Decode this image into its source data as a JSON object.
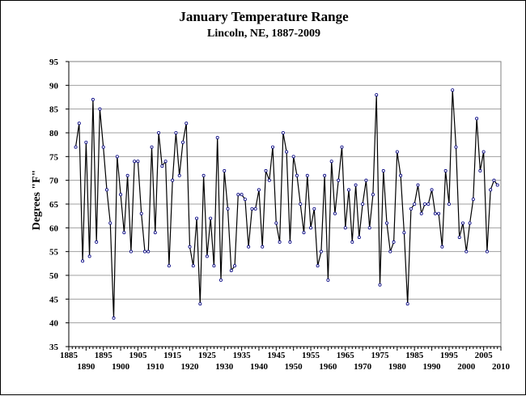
{
  "chart_data": {
    "type": "line",
    "title": "January Temperature Range",
    "subtitle": "Lincoln, NE, 1887-2009",
    "xlabel": "",
    "ylabel": "Degrees \"F\"",
    "xlim": [
      1885,
      2010
    ],
    "ylim": [
      35,
      95
    ],
    "y_ticks": [
      35,
      40,
      45,
      50,
      55,
      60,
      65,
      70,
      75,
      80,
      85,
      90,
      95
    ],
    "x_ticks_upper": [
      1885,
      1895,
      1905,
      1915,
      1925,
      1935,
      1945,
      1955,
      1965,
      1975,
      1985,
      1995,
      2005
    ],
    "x_ticks_lower": [
      1890,
      1900,
      1910,
      1920,
      1930,
      1940,
      1950,
      1960,
      1970,
      1980,
      1990,
      2000,
      2010
    ],
    "grid": "horizontal",
    "legend": "none",
    "series": [
      {
        "x": [
          1887,
          1888,
          1889,
          1890,
          1891,
          1892,
          1893,
          1894,
          1895,
          1896,
          1897,
          1898,
          1899,
          1900,
          1901,
          1902,
          1903,
          1904,
          1905,
          1906,
          1907,
          1908,
          1909,
          1910,
          1911,
          1912,
          1913,
          1914,
          1915,
          1916,
          1917,
          1918,
          1919,
          1920,
          1921,
          1922,
          1923,
          1924,
          1925,
          1926,
          1927,
          1928,
          1929,
          1930,
          1931,
          1932,
          1933,
          1934,
          1935,
          1936,
          1937,
          1938,
          1939,
          1940,
          1941,
          1942,
          1943,
          1944,
          1945,
          1946,
          1947,
          1948,
          1949,
          1950,
          1951,
          1952,
          1953,
          1954,
          1955,
          1956,
          1957,
          1958,
          1959,
          1960,
          1961,
          1962,
          1963,
          1964,
          1965,
          1966,
          1967,
          1968,
          1969,
          1970,
          1971,
          1972,
          1973,
          1974,
          1975,
          1976,
          1977,
          1978,
          1979,
          1980,
          1981,
          1982,
          1983,
          1984,
          1985,
          1986,
          1987,
          1988,
          1989,
          1990,
          1991,
          1992,
          1993,
          1994,
          1995,
          1996,
          1997,
          1998,
          1999,
          2000,
          2001,
          2002,
          2003,
          2004,
          2005,
          2006,
          2007,
          2008,
          2009
        ],
        "values": [
          77,
          82,
          53,
          78,
          54,
          87,
          57,
          85,
          77,
          68,
          61,
          41,
          75,
          67,
          59,
          71,
          55,
          74,
          74,
          63,
          55,
          55,
          77,
          59,
          80,
          73,
          74,
          52,
          70,
          80,
          71,
          78,
          82,
          56,
          52,
          62,
          44,
          71,
          54,
          62,
          52,
          79,
          49,
          72,
          64,
          51,
          52,
          67,
          67,
          66,
          56,
          64,
          64,
          68,
          56,
          72,
          70,
          77,
          61,
          57,
          80,
          76,
          57,
          75,
          71,
          65,
          59,
          71,
          60,
          64,
          52,
          55,
          71,
          49,
          74,
          63,
          70,
          77,
          60,
          68,
          57,
          69,
          58,
          65,
          70,
          60,
          67,
          88,
          48,
          72,
          61,
          55,
          57,
          76,
          71,
          59,
          44,
          64,
          65,
          69,
          63,
          65,
          65,
          68,
          63,
          63,
          56,
          72,
          65,
          89,
          77,
          58,
          61,
          55,
          61,
          66,
          83,
          72,
          76,
          55,
          68,
          70,
          69
        ]
      }
    ]
  }
}
